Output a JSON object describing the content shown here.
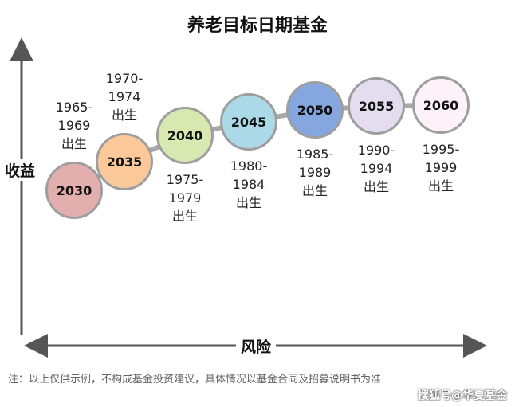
{
  "title": "养老目标日期基金",
  "axes": {
    "y_label": "收益",
    "x_label": "风险"
  },
  "funds": [
    {
      "year": "2030",
      "birth": "1965-\n1969\n出生",
      "label_pos": "above",
      "color": "#e3aeae"
    },
    {
      "year": "2035",
      "birth": "1970-\n1974\n出生",
      "label_pos": "above",
      "color": "#fbc89a"
    },
    {
      "year": "2040",
      "birth": "1975-\n1979\n出生",
      "label_pos": "below",
      "color": "#d7e8b0"
    },
    {
      "year": "2045",
      "birth": "1980-\n1984\n出生",
      "label_pos": "below",
      "color": "#acd9e8"
    },
    {
      "year": "2050",
      "birth": "1985-\n1989\n出生",
      "label_pos": "below",
      "color": "#86a6e0"
    },
    {
      "year": "2055",
      "birth": "1990-\n1994\n出生",
      "label_pos": "below",
      "color": "#e4dcef"
    },
    {
      "year": "2060",
      "birth": "1995-\n1999\n出生",
      "label_pos": "below",
      "color": "#fdf2f8"
    }
  ],
  "note": "注：以上仅供示例，不构成基金投资建议，具体情况以基金合同及招募说明书为准",
  "watermark": "搜狐号@华夏基金"
}
